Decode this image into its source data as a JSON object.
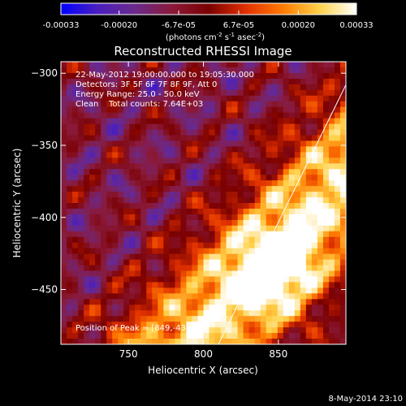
{
  "colorbar": {
    "tick_labels": [
      "-0.00033",
      "-0.00020",
      "-6.7e-05",
      "6.7e-05",
      "0.00020",
      "0.00033"
    ],
    "tick_values": [
      -0.00033,
      -0.0002,
      -6.7e-05,
      6.7e-05,
      0.0002,
      0.00033
    ],
    "range": [
      -0.00033,
      0.00033
    ],
    "units_main": "(photons cm",
    "units_exp1": "-2",
    "units_mid": " s",
    "units_exp2": "-1",
    "units_end": " asec",
    "units_exp3": "-2",
    "units_close": ")"
  },
  "annotations": {
    "time_range": "22-May-2012 19:00:00.000 to 19:05:30.000",
    "detectors": "Detectors: 3F 5F 6F 7F 8F 9F, Att 0",
    "energy": "Energy Range: 25.0 - 50.0 keV",
    "clean": "Clean",
    "total_counts": "Total counts: 7.64E+03",
    "peak": "Position of Peak = [849,-438]"
  },
  "footer_timestamp": "8-May-2014 23:10",
  "colors": {
    "background": "#000000",
    "text": "#ffffff",
    "limb_line": "#ffffff",
    "cmap_stops": [
      "#0000ff",
      "#4b1fbf",
      "#6a2a8c",
      "#8a1a3a",
      "#7a0000",
      "#e03000",
      "#ff7a00",
      "#ffd24a",
      "#ffffff"
    ]
  },
  "chart_data": {
    "type": "heatmap",
    "title": "Reconstructed RHESSI Image",
    "xlabel": "Heliocentric X (arcsec)",
    "ylabel": "Heliocentric Y (arcsec)",
    "xlim": [
      705,
      895
    ],
    "ylim": [
      -488,
      -292
    ],
    "x_ticks": [
      750,
      800,
      850
    ],
    "y_ticks": [
      -300,
      -350,
      -400,
      -450
    ],
    "peak_position": [
      849,
      -438
    ],
    "limb_line": [
      [
        810,
        -488
      ],
      [
        895,
        -308
      ]
    ]
  }
}
